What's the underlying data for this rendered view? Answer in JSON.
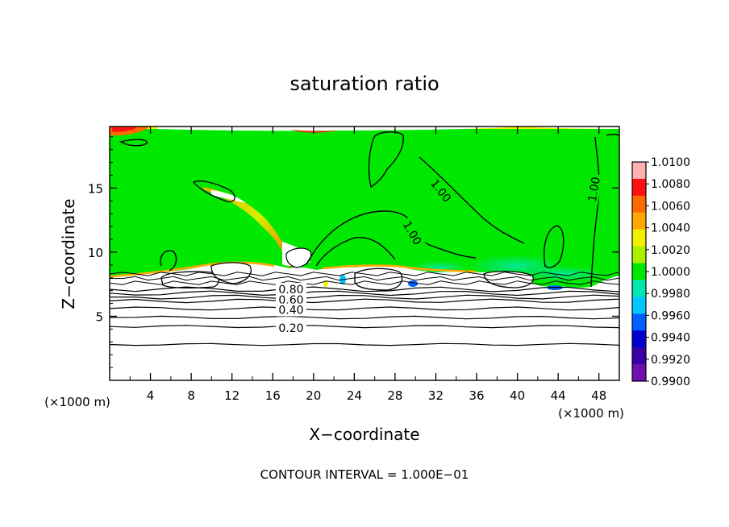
{
  "chart_data": {
    "type": "heatmap",
    "title": "saturation ratio",
    "xlabel": "X−coordinate",
    "ylabel": "Z−coordinate",
    "x_unit": "(×1000 m)",
    "y_unit": "(×1000 m)",
    "xlim": [
      0,
      50
    ],
    "ylim": [
      0,
      19.8
    ],
    "x_ticks": [
      4,
      8,
      12,
      16,
      20,
      24,
      28,
      32,
      36,
      40,
      44,
      48
    ],
    "y_ticks": [
      5,
      10,
      15
    ],
    "footer": "CONTOUR INTERVAL = 1.000E−01",
    "colorbar": {
      "ticks": [
        "1.0100",
        "1.0080",
        "1.0060",
        "1.0040",
        "1.0020",
        "1.0000",
        "0.9980",
        "0.9960",
        "0.9940",
        "0.9920",
        "0.9900"
      ],
      "colors": [
        "#ffb0b0",
        "#ff1010",
        "#ff6a00",
        "#ffa800",
        "#f0f000",
        "#a8f000",
        "#00e800",
        "#00e8b0",
        "#00c8ff",
        "#0060ff",
        "#0000d0",
        "#3a00a8",
        "#7010b0"
      ]
    },
    "contour_labels": [
      {
        "text": "1.00",
        "x": 32.5,
        "z": 14.8,
        "angle": 52
      },
      {
        "text": "1.00",
        "x": 29.7,
        "z": 11.5,
        "angle": 60
      },
      {
        "text": "1.00",
        "x": 47.5,
        "z": 14.9,
        "angle": -80
      },
      {
        "text": "0.80",
        "x": 17.8,
        "z": 7.1,
        "angle": 0
      },
      {
        "text": "0.60",
        "x": 17.8,
        "z": 6.3,
        "angle": 0
      },
      {
        "text": "0.40",
        "x": 17.8,
        "z": 5.5,
        "angle": 0
      },
      {
        "text": "0.20",
        "x": 17.8,
        "z": 4.1,
        "angle": 0
      }
    ],
    "lower_contours_z": [
      2.8,
      4.2,
      4.9,
      5.6,
      6.2,
      6.5,
      6.8,
      7.1
    ]
  }
}
